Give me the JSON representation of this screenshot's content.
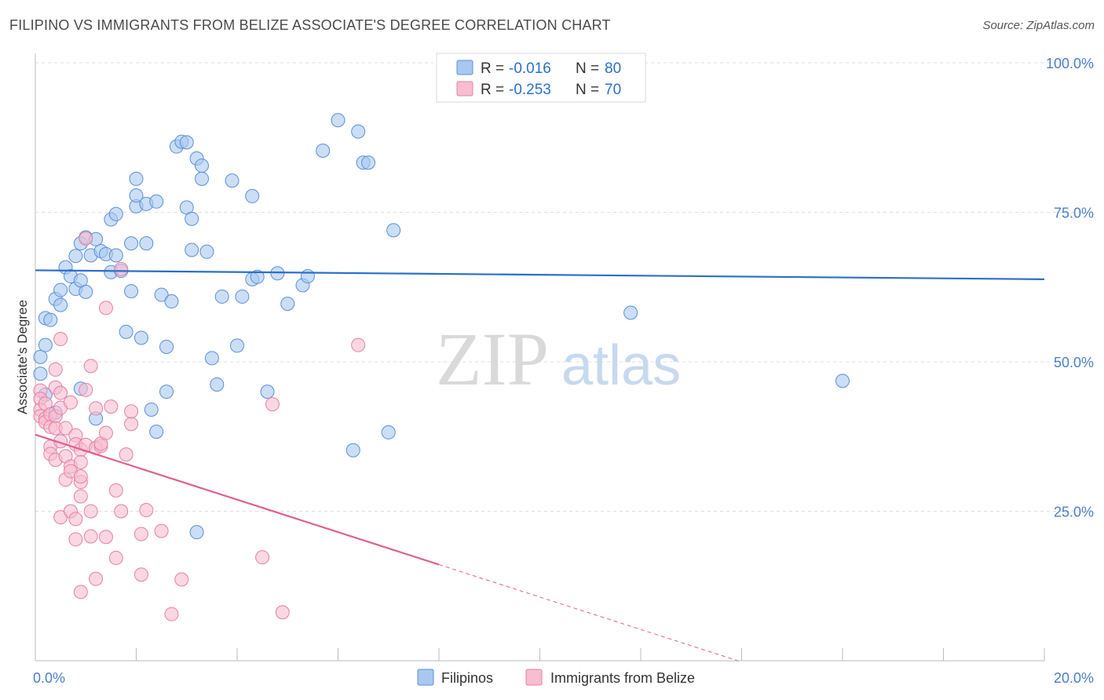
{
  "header": {
    "title": "FILIPINO VS IMMIGRANTS FROM BELIZE ASSOCIATE'S DEGREE CORRELATION CHART",
    "source": "Source: ZipAtlas.com"
  },
  "watermark": {
    "zip": "ZIP",
    "atlas": "atlas"
  },
  "colors": {
    "blue_fill": "#a8c8f0",
    "blue_edge": "#5b8fd6",
    "blue_line": "#2a6fc9",
    "pink_fill": "#f7bdd0",
    "pink_edge": "#e77fa3",
    "pink_line": "#e0608f",
    "tick_text": "#4a7fc9",
    "grid": "#dddddd"
  },
  "chart_data": {
    "type": "scatter",
    "title": "FILIPINO VS IMMIGRANTS FROM BELIZE ASSOCIATE'S DEGREE CORRELATION CHART",
    "xlabel": "",
    "ylabel": "Associate's Degree",
    "xlim": [
      0,
      20
    ],
    "ylim": [
      0,
      100
    ],
    "x_tick_labels": [
      "0.0%",
      "20.0%"
    ],
    "y_ticks": [
      25,
      50,
      75,
      100
    ],
    "y_tick_labels": [
      "25.0%",
      "50.0%",
      "75.0%",
      "100.0%"
    ],
    "grid": true,
    "legend": {
      "position": "top-center",
      "entries": [
        {
          "series": "Filipinos",
          "r_label": "R =",
          "r_value": "-0.016",
          "n_label": "N =",
          "n_value": "80"
        },
        {
          "series": "Immigrants from Belize",
          "r_label": "R =",
          "r_value": "-0.253",
          "n_label": "N =",
          "n_value": "70"
        }
      ]
    },
    "bottom_legend": [
      "Filipinos",
      "Immigrants from Belize"
    ],
    "series": [
      {
        "name": "Filipinos",
        "color": "blue",
        "trend": {
          "x0": 0,
          "y0": 65.3,
          "x1": 20,
          "y1": 63.8,
          "dashed_from": null
        },
        "points": [
          [
            0.1,
            50.8
          ],
          [
            0.1,
            48.0
          ],
          [
            0.2,
            52.8
          ],
          [
            0.2,
            57.3
          ],
          [
            0.3,
            57.0
          ],
          [
            0.4,
            60.5
          ],
          [
            0.5,
            59.5
          ],
          [
            0.5,
            62.0
          ],
          [
            0.6,
            65.8
          ],
          [
            0.7,
            64.3
          ],
          [
            0.8,
            67.7
          ],
          [
            0.8,
            62.2
          ],
          [
            0.9,
            69.8
          ],
          [
            0.9,
            63.6
          ],
          [
            1.0,
            61.7
          ],
          [
            1.0,
            70.8
          ],
          [
            1.1,
            67.8
          ],
          [
            1.2,
            70.5
          ],
          [
            1.3,
            68.5
          ],
          [
            1.4,
            68.0
          ],
          [
            1.5,
            65.0
          ],
          [
            1.5,
            73.8
          ],
          [
            1.6,
            67.8
          ],
          [
            1.6,
            74.7
          ],
          [
            1.7,
            65.2
          ],
          [
            1.9,
            61.8
          ],
          [
            1.9,
            69.8
          ],
          [
            2.0,
            76.0
          ],
          [
            2.0,
            77.8
          ],
          [
            2.0,
            80.6
          ],
          [
            2.1,
            54.0
          ],
          [
            2.2,
            69.8
          ],
          [
            2.2,
            76.4
          ],
          [
            2.4,
            76.8
          ],
          [
            2.4,
            38.3
          ],
          [
            2.5,
            61.2
          ],
          [
            2.6,
            45.0
          ],
          [
            2.6,
            52.5
          ],
          [
            2.7,
            60.1
          ],
          [
            2.8,
            86.0
          ],
          [
            2.9,
            86.8
          ],
          [
            3.0,
            75.8
          ],
          [
            3.0,
            86.7
          ],
          [
            3.1,
            68.7
          ],
          [
            3.1,
            73.9
          ],
          [
            3.2,
            21.5
          ],
          [
            3.2,
            84.0
          ],
          [
            3.3,
            82.8
          ],
          [
            3.3,
            80.6
          ],
          [
            3.4,
            68.4
          ],
          [
            3.5,
            50.6
          ],
          [
            3.6,
            46.2
          ],
          [
            3.7,
            60.9
          ],
          [
            3.9,
            80.3
          ],
          [
            4.0,
            52.7
          ],
          [
            4.1,
            60.9
          ],
          [
            4.3,
            77.7
          ],
          [
            4.3,
            63.8
          ],
          [
            4.4,
            64.2
          ],
          [
            4.6,
            45.0
          ],
          [
            4.8,
            64.8
          ],
          [
            5.0,
            59.7
          ],
          [
            5.3,
            62.8
          ],
          [
            5.4,
            64.3
          ],
          [
            5.7,
            85.3
          ],
          [
            6.0,
            90.4
          ],
          [
            6.3,
            35.2
          ],
          [
            6.4,
            88.5
          ],
          [
            6.5,
            83.3
          ],
          [
            6.6,
            83.3
          ],
          [
            7.0,
            38.2
          ],
          [
            7.1,
            72.0
          ],
          [
            11.8,
            58.2
          ],
          [
            16.0,
            46.8
          ],
          [
            0.2,
            44.5
          ],
          [
            0.4,
            41.5
          ],
          [
            0.9,
            45.5
          ],
          [
            1.2,
            40.5
          ],
          [
            1.8,
            55.0
          ],
          [
            2.3,
            42.0
          ]
        ]
      },
      {
        "name": "Immigrants from Belize",
        "color": "pink",
        "trend": {
          "x0": 0,
          "y0": 37.8,
          "x1": 14,
          "y1": -0.2,
          "dashed_from": 8.0
        },
        "points": [
          [
            0.1,
            45.2
          ],
          [
            0.1,
            43.8
          ],
          [
            0.1,
            42.0
          ],
          [
            0.1,
            40.9
          ],
          [
            0.2,
            43.0
          ],
          [
            0.2,
            40.5
          ],
          [
            0.2,
            39.9
          ],
          [
            0.3,
            35.8
          ],
          [
            0.3,
            34.6
          ],
          [
            0.3,
            41.2
          ],
          [
            0.3,
            39.1
          ],
          [
            0.4,
            48.7
          ],
          [
            0.4,
            40.9
          ],
          [
            0.4,
            33.6
          ],
          [
            0.4,
            38.9
          ],
          [
            0.4,
            45.7
          ],
          [
            0.5,
            53.8
          ],
          [
            0.5,
            24.0
          ],
          [
            0.5,
            42.3
          ],
          [
            0.5,
            44.8
          ],
          [
            0.5,
            36.7
          ],
          [
            0.6,
            34.2
          ],
          [
            0.6,
            30.3
          ],
          [
            0.6,
            38.9
          ],
          [
            0.7,
            43.2
          ],
          [
            0.7,
            32.5
          ],
          [
            0.7,
            31.7
          ],
          [
            0.7,
            25.0
          ],
          [
            0.8,
            37.7
          ],
          [
            0.8,
            23.7
          ],
          [
            0.8,
            36.2
          ],
          [
            0.8,
            20.3
          ],
          [
            0.9,
            35.3
          ],
          [
            0.9,
            27.5
          ],
          [
            0.9,
            29.9
          ],
          [
            0.9,
            11.5
          ],
          [
            0.9,
            30.8
          ],
          [
            0.9,
            33.2
          ],
          [
            1.0,
            45.3
          ],
          [
            1.0,
            36.1
          ],
          [
            1.1,
            20.8
          ],
          [
            1.1,
            25.0
          ],
          [
            1.1,
            49.3
          ],
          [
            1.2,
            13.7
          ],
          [
            1.2,
            35.6
          ],
          [
            1.2,
            42.2
          ],
          [
            1.3,
            35.9
          ],
          [
            1.3,
            36.3
          ],
          [
            1.4,
            20.7
          ],
          [
            1.4,
            59.0
          ],
          [
            1.4,
            38.1
          ],
          [
            1.5,
            42.5
          ],
          [
            1.6,
            17.2
          ],
          [
            1.6,
            28.5
          ],
          [
            1.7,
            25.0
          ],
          [
            1.8,
            34.5
          ],
          [
            1.9,
            39.6
          ],
          [
            1.9,
            41.7
          ],
          [
            2.1,
            14.4
          ],
          [
            2.1,
            21.2
          ],
          [
            2.2,
            25.2
          ],
          [
            2.5,
            21.7
          ],
          [
            2.7,
            7.8
          ],
          [
            2.9,
            13.6
          ],
          [
            4.5,
            17.3
          ],
          [
            4.7,
            42.9
          ],
          [
            4.9,
            8.1
          ],
          [
            6.4,
            52.8
          ],
          [
            1.7,
            65.5
          ],
          [
            1.0,
            70.6
          ]
        ]
      }
    ]
  }
}
